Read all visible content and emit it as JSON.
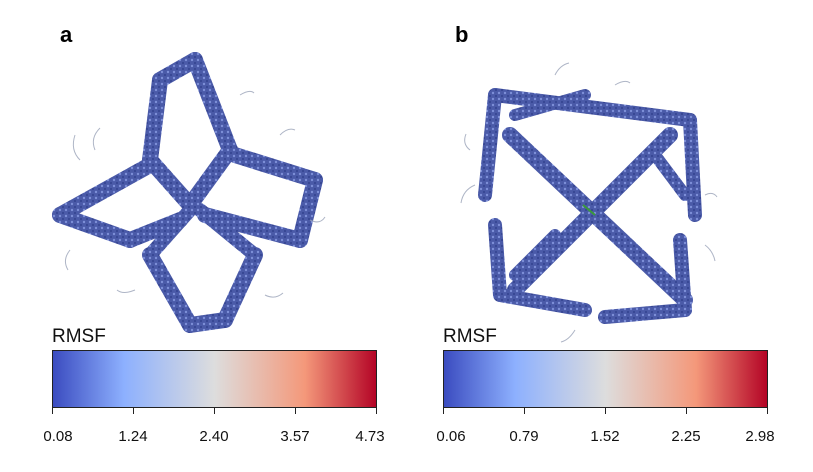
{
  "panels": [
    {
      "letter": "a",
      "colorbar": {
        "title": "RMSF",
        "ticks": [
          "0.08",
          "1.24",
          "2.40",
          "3.57",
          "4.73"
        ]
      }
    },
    {
      "letter": "b",
      "colorbar": {
        "title": "RMSF",
        "ticks": [
          "0.06",
          "0.79",
          "1.52",
          "2.25",
          "2.98"
        ]
      }
    }
  ],
  "colors": {
    "low": "#3b4cc0",
    "mid_low": "#8db0fe",
    "mid": "#dddddd",
    "mid_high": "#f4987a",
    "high": "#b40426"
  }
}
